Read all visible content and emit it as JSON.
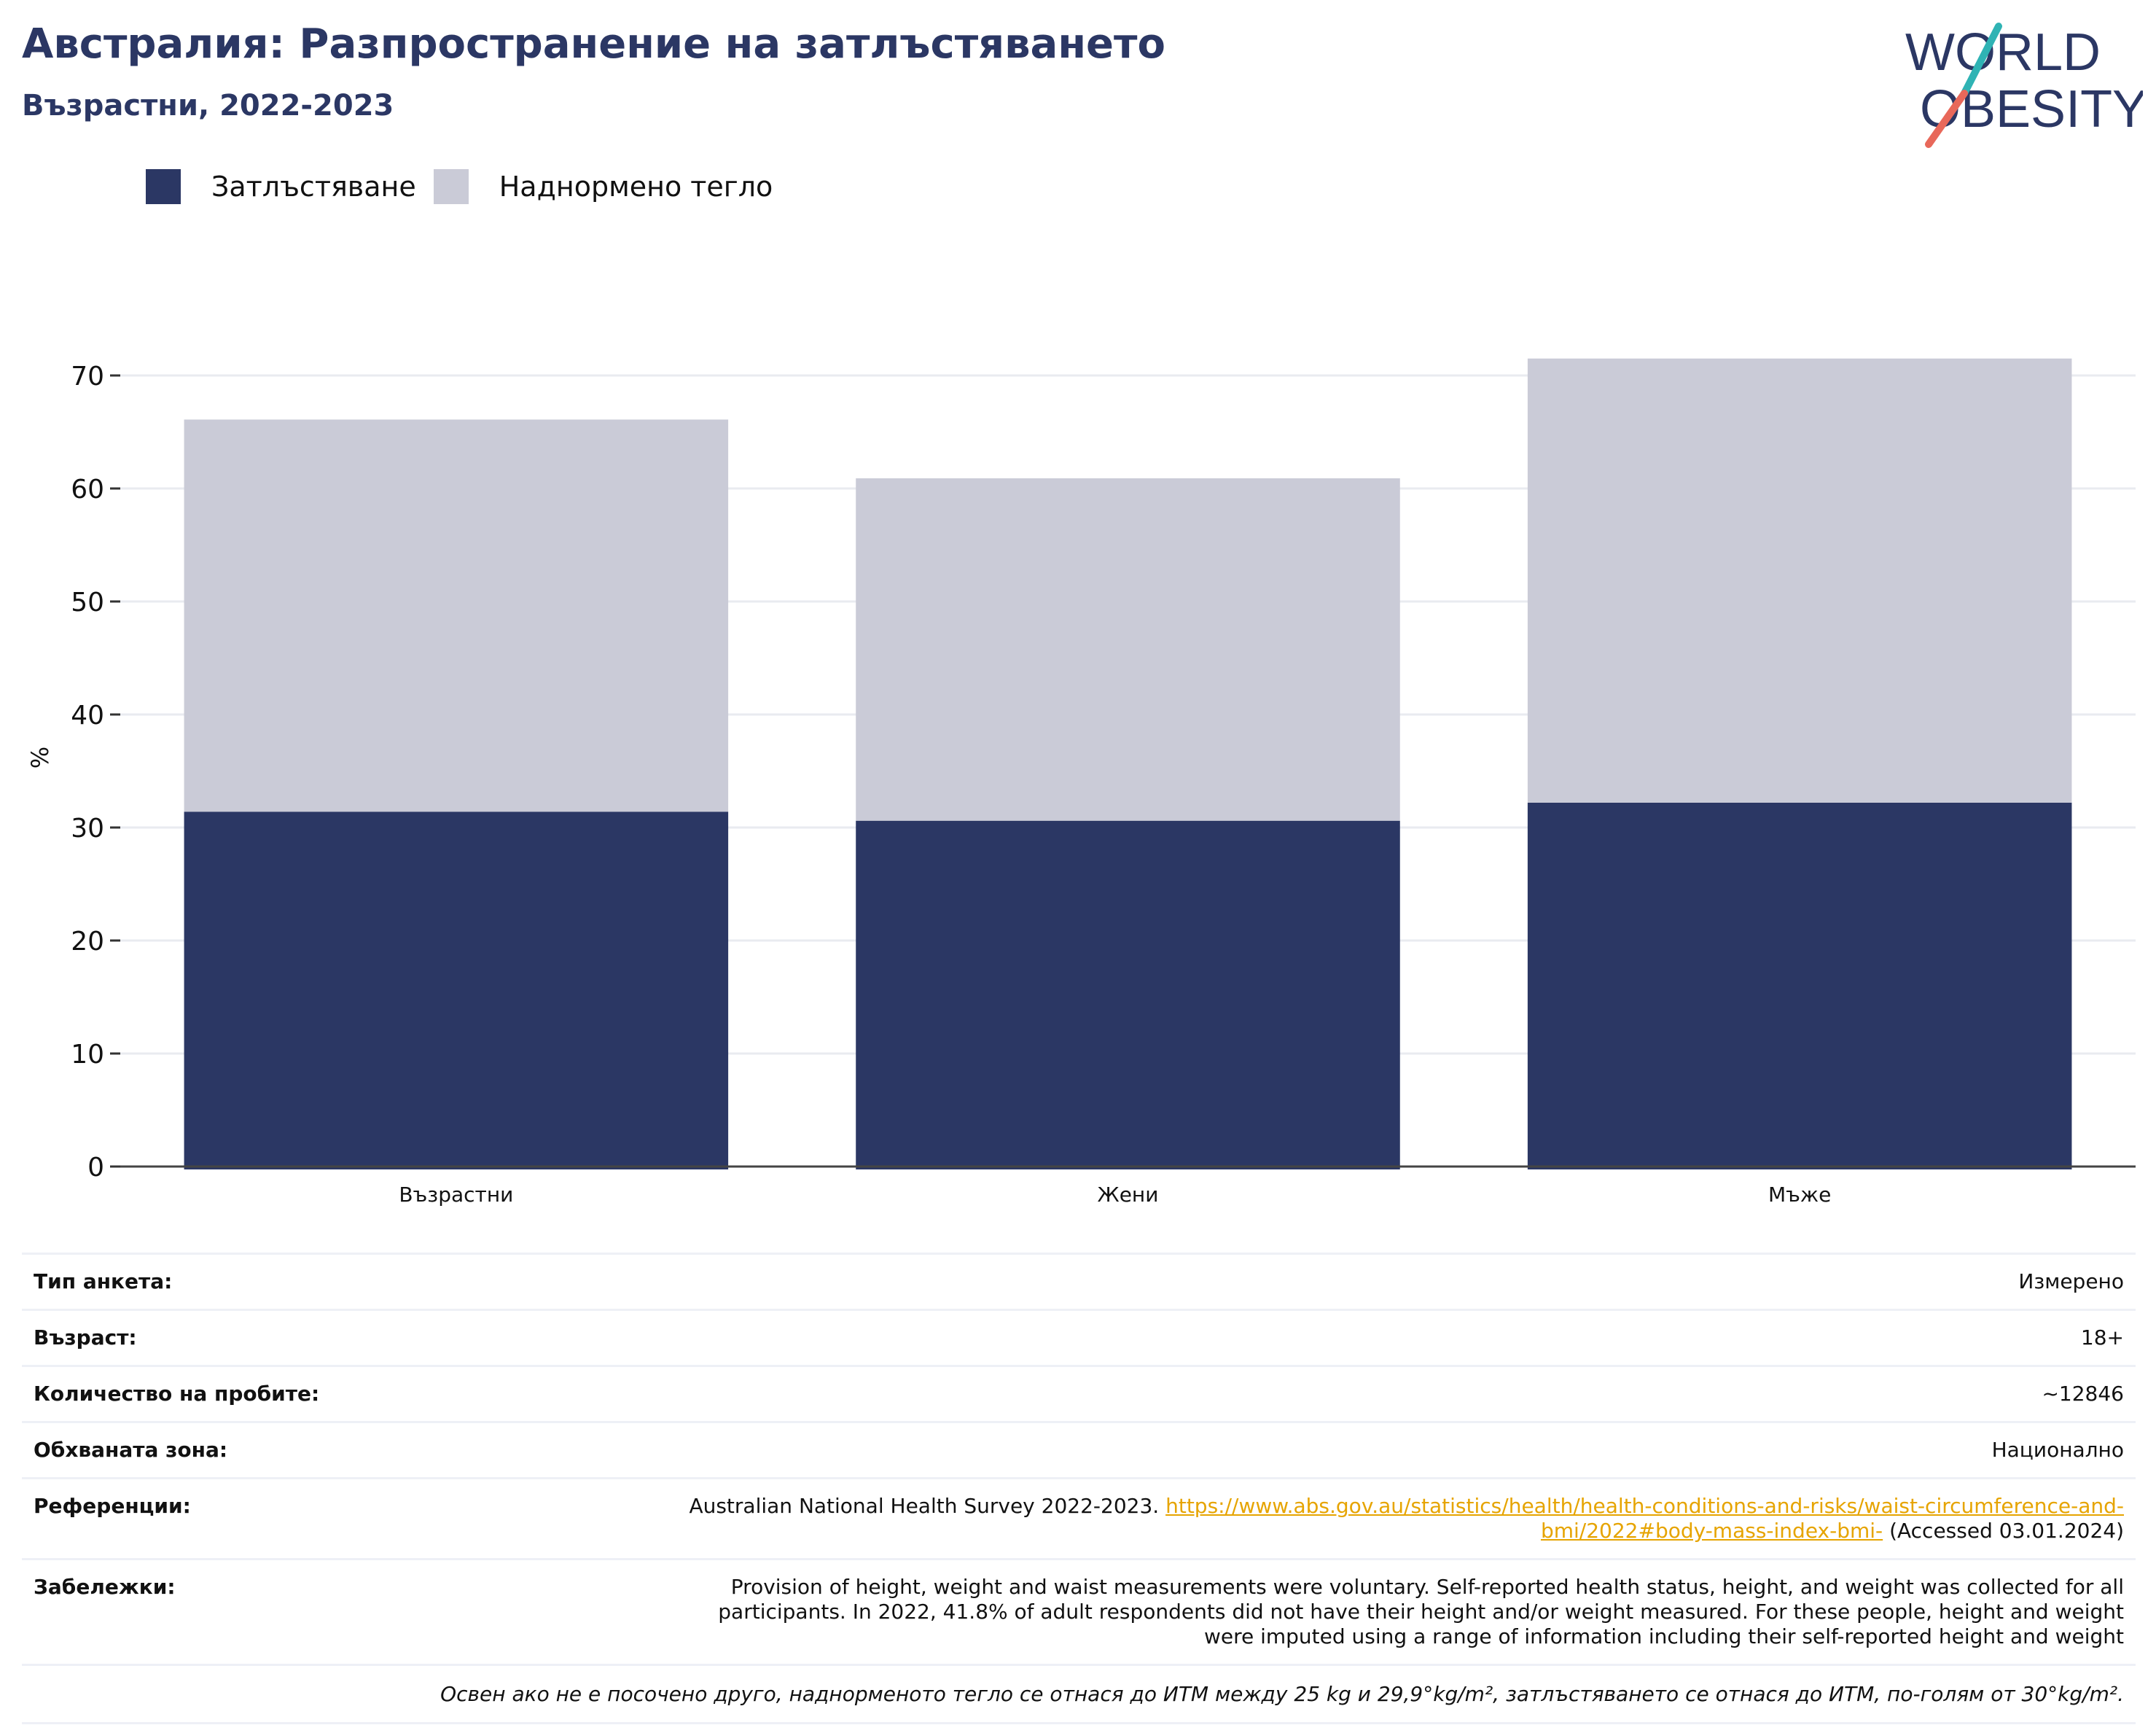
{
  "header": {
    "title": "Австралия: Разпространение на затлъстяването",
    "subtitle": "Възрастни, 2022-2023"
  },
  "logo": {
    "line1": "WORLD",
    "line2": "OBESITY",
    "colors": {
      "navy": "#2b3764",
      "teal": "#2fb3b4",
      "coral": "#e8685a"
    }
  },
  "legend": [
    {
      "label": "Затлъстяване",
      "color": "#2b3764"
    },
    {
      "label": "Наднормено тегло",
      "color": "#cacbd7"
    }
  ],
  "chart_data": {
    "type": "bar",
    "stacked": true,
    "categories": [
      "Възрастни",
      "Жени",
      "Мъже"
    ],
    "series": [
      {
        "name": "Затлъстяване",
        "color": "#2b3764",
        "values": [
          31.4,
          30.6,
          32.2
        ]
      },
      {
        "name": "Наднормено тегло",
        "color": "#cacbd7",
        "values": [
          34.7,
          30.3,
          39.3
        ]
      }
    ],
    "ylabel": "%",
    "ylim": [
      0,
      72
    ],
    "yticks": [
      0,
      10,
      20,
      30,
      40,
      50,
      60,
      70
    ],
    "grid": true,
    "legend_position": "top-left"
  },
  "info": {
    "survey_type": {
      "label": "Тип анкета:",
      "value": "Измерено"
    },
    "age": {
      "label": "Възраст:",
      "value": "18+"
    },
    "sample_size": {
      "label": "Количество на пробите:",
      "value": "~12846"
    },
    "coverage": {
      "label": "Обхваната зона:",
      "value": "Национално"
    },
    "references": {
      "label": "Референции:",
      "text": "Australian National Health Survey 2022-2023.",
      "link_part1": "https://www.abs.gov.au/statistics/health/health-conditions-and-risks/waist-circumference-and-",
      "link_part2": "bmi/2022#body-mass-index-bmi-",
      "accessed": "(Accessed 03.01.2024)"
    },
    "notes": {
      "label": "Забележки:",
      "line1": "Provision of height, weight and waist measurements were voluntary. Self-reported health status, height, and weight was collected for all",
      "line2": "participants. In 2022, 41.8% of adult respondents did not have their height and/or weight measured. For these people, height and weight",
      "line3": "were imputed using a range of information including their self-reported height and weight"
    },
    "footnote": "Освен ако не е посочено друго, наднорменото тегло се отнася до ИТМ между 25 kg и 29,9°kg/m², затлъстяването се отнася до ИТМ, по-голям от 30°kg/m²."
  }
}
